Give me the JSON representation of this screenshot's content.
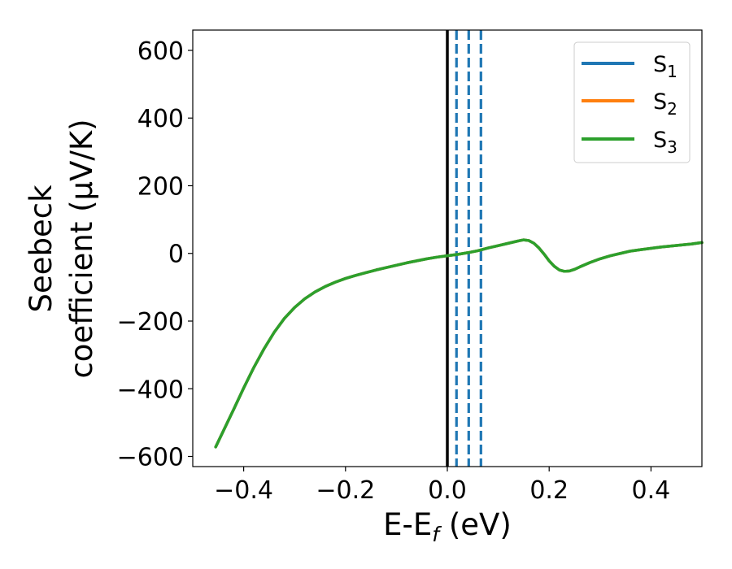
{
  "chart_data": {
    "type": "line",
    "xlabel": "E-E_f (eV)",
    "xlabel_main": "E-E",
    "xlabel_sub": "f",
    "xlabel_tail": " (eV)",
    "ylabel": "Seebeck coefficient (μV/K)",
    "ylabel_line1": "Seebeck",
    "ylabel_line2": "coefficient  (μV/K)",
    "xlim": [
      -0.5,
      0.5
    ],
    "ylim": [
      -630,
      660
    ],
    "xticks": [
      -0.4,
      -0.2,
      0.0,
      0.2,
      0.4
    ],
    "xtick_labels": [
      "−0.4",
      "−0.2",
      "0.0",
      "0.2",
      "0.4"
    ],
    "yticks": [
      -600,
      -400,
      -200,
      0,
      200,
      400,
      600
    ],
    "ytick_labels": [
      "−600",
      "−400",
      "−200",
      "0",
      "200",
      "400",
      "600"
    ],
    "grid": false,
    "legend_position": "top-right",
    "x": [
      -0.455,
      -0.44,
      -0.42,
      -0.4,
      -0.38,
      -0.36,
      -0.34,
      -0.32,
      -0.3,
      -0.28,
      -0.26,
      -0.24,
      -0.22,
      -0.2,
      -0.18,
      -0.16,
      -0.14,
      -0.12,
      -0.1,
      -0.08,
      -0.06,
      -0.04,
      -0.02,
      0.0,
      0.02,
      0.04,
      0.06,
      0.08,
      0.1,
      0.12,
      0.14,
      0.15,
      0.16,
      0.17,
      0.18,
      0.19,
      0.2,
      0.21,
      0.22,
      0.23,
      0.24,
      0.25,
      0.26,
      0.28,
      0.3,
      0.32,
      0.34,
      0.36,
      0.38,
      0.4,
      0.42,
      0.44,
      0.46,
      0.48,
      0.5
    ],
    "series": [
      {
        "name": "S_1",
        "label_main": "S",
        "label_sub": "1",
        "color": "#1f77b4",
        "y": [
          -572,
          -525,
          -462,
          -398,
          -337,
          -282,
          -233,
          -192,
          -160,
          -134,
          -114,
          -98,
          -85,
          -74,
          -65,
          -57,
          -49,
          -42,
          -35,
          -28,
          -22,
          -16,
          -11,
          -7,
          -3,
          2,
          8,
          16,
          23,
          30,
          37,
          40,
          38,
          30,
          16,
          -2,
          -22,
          -38,
          -49,
          -53,
          -52,
          -47,
          -40,
          -27,
          -16,
          -7,
          0,
          7,
          11,
          15,
          19,
          22,
          25,
          28,
          32
        ]
      },
      {
        "name": "S_2",
        "label_main": "S",
        "label_sub": "2",
        "color": "#ff7f0e",
        "y": [
          -572,
          -525,
          -462,
          -398,
          -337,
          -282,
          -233,
          -192,
          -160,
          -134,
          -114,
          -98,
          -85,
          -74,
          -65,
          -57,
          -49,
          -42,
          -35,
          -28,
          -22,
          -16,
          -11,
          -7,
          -3,
          2,
          8,
          16,
          23,
          30,
          37,
          40,
          38,
          30,
          16,
          -2,
          -22,
          -38,
          -49,
          -53,
          -52,
          -47,
          -40,
          -27,
          -16,
          -7,
          0,
          7,
          11,
          15,
          19,
          22,
          25,
          28,
          32
        ]
      },
      {
        "name": "S_3",
        "label_main": "S",
        "label_sub": "3",
        "color": "#2ca02c",
        "y": [
          -572,
          -525,
          -462,
          -398,
          -337,
          -282,
          -233,
          -192,
          -160,
          -134,
          -114,
          -98,
          -85,
          -74,
          -65,
          -57,
          -49,
          -42,
          -35,
          -28,
          -22,
          -16,
          -11,
          -7,
          -3,
          2,
          8,
          16,
          23,
          30,
          37,
          40,
          38,
          30,
          16,
          -2,
          -22,
          -38,
          -49,
          -53,
          -52,
          -47,
          -40,
          -27,
          -16,
          -7,
          0,
          7,
          11,
          15,
          19,
          22,
          25,
          28,
          32
        ]
      }
    ],
    "vertical_lines": [
      {
        "x": 0.0,
        "color": "#000000",
        "style": "solid"
      },
      {
        "x": 0.018,
        "color": "#1f77b4",
        "style": "dashed"
      },
      {
        "x": 0.042,
        "color": "#1f77b4",
        "style": "dashed"
      },
      {
        "x": 0.066,
        "color": "#1f77b4",
        "style": "dashed"
      }
    ]
  }
}
